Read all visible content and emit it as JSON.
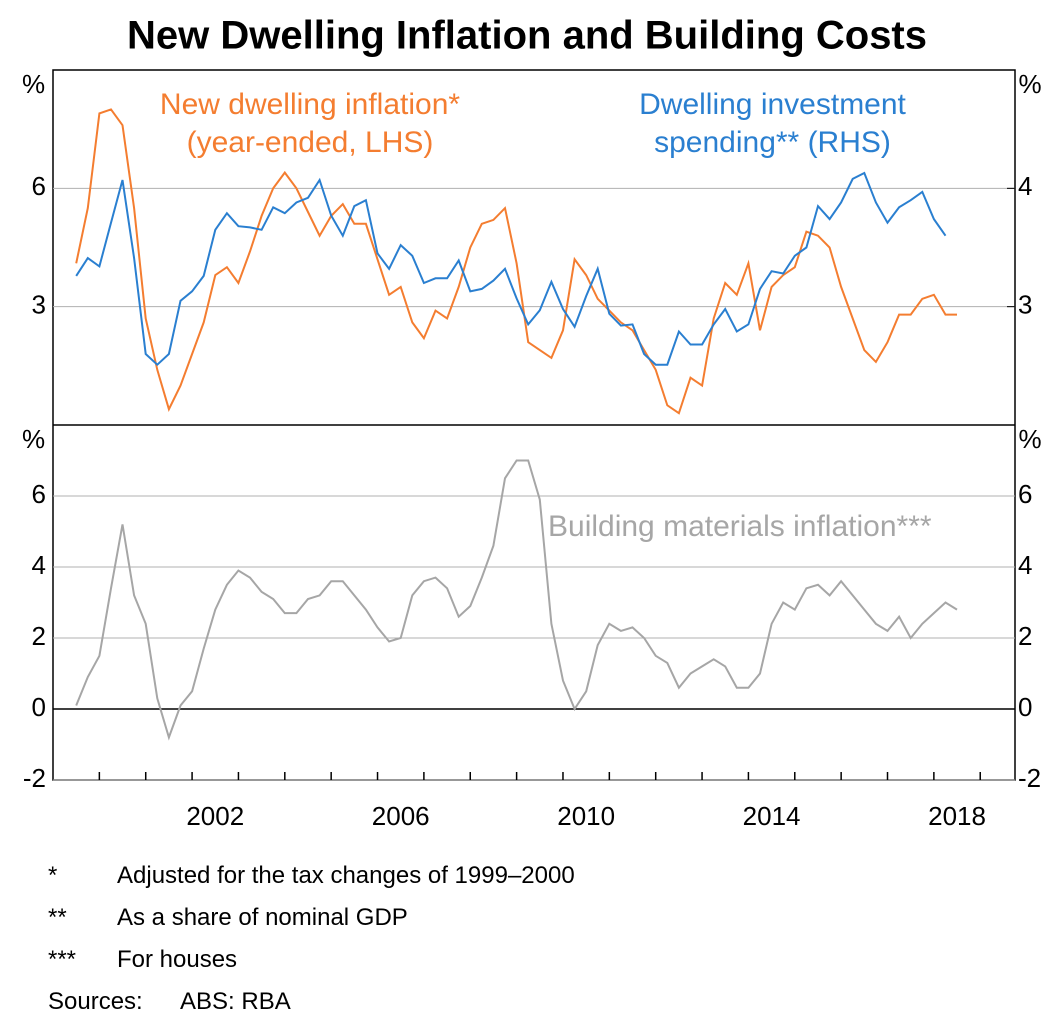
{
  "title": "New Dwelling Inflation and Building Costs",
  "chart_data": [
    {
      "type": "line",
      "ylabel": "%",
      "y2label": "%",
      "xlim": [
        1999,
        2019.75
      ],
      "ylim": [
        0,
        9
      ],
      "yticks": [
        3,
        6
      ],
      "y2lim": [
        2,
        5
      ],
      "y2ticks": [
        3,
        4
      ],
      "grid": true,
      "x": [
        1999.5,
        1999.75,
        2000,
        2000.25,
        2000.5,
        2000.75,
        2001,
        2001.25,
        2001.5,
        2001.75,
        2002,
        2002.25,
        2002.5,
        2002.75,
        2003,
        2003.25,
        2003.5,
        2003.75,
        2004,
        2004.25,
        2004.5,
        2004.75,
        2005,
        2005.25,
        2005.5,
        2005.75,
        2006,
        2006.25,
        2006.5,
        2006.75,
        2007,
        2007.25,
        2007.5,
        2007.75,
        2008,
        2008.25,
        2008.5,
        2008.75,
        2009,
        2009.25,
        2009.5,
        2009.75,
        2010,
        2010.25,
        2010.5,
        2010.75,
        2011,
        2011.25,
        2011.5,
        2011.75,
        2012,
        2012.25,
        2012.5,
        2012.75,
        2013,
        2013.25,
        2013.5,
        2013.75,
        2014,
        2014.25,
        2014.5,
        2014.75,
        2015,
        2015.25,
        2015.5,
        2015.75,
        2016,
        2016.25,
        2016.5,
        2016.75,
        2017,
        2017.25,
        2017.5,
        2017.75,
        2018,
        2018.25,
        2018.5
      ],
      "series": [
        {
          "name": "New dwelling inflation* (year-ended, LHS)",
          "color": "#f47d30",
          "values": [
            4.1,
            5.5,
            7.9,
            8.0,
            7.6,
            5.5,
            2.7,
            1.4,
            0.4,
            1.0,
            1.8,
            2.6,
            3.8,
            4.0,
            3.6,
            4.4,
            5.3,
            6.0,
            6.4,
            6.0,
            5.4,
            4.8,
            5.3,
            5.6,
            5.1,
            5.1,
            4.2,
            3.3,
            3.5,
            2.6,
            2.2,
            2.9,
            2.7,
            3.5,
            4.5,
            5.1,
            5.2,
            5.5,
            4.1,
            2.1,
            1.9,
            1.7,
            2.4,
            4.2,
            3.8,
            3.2,
            2.9,
            2.6,
            2.4,
            1.9,
            1.4,
            0.5,
            0.3,
            1.2,
            1.0,
            2.7,
            3.6,
            3.3,
            4.1,
            2.4,
            3.5,
            3.8,
            4.0,
            4.9,
            4.8,
            4.5,
            3.5,
            2.7,
            1.9,
            1.6,
            2.1,
            2.8,
            2.8,
            3.2,
            3.3,
            2.8,
            2.8
          ]
        },
        {
          "name": "Dwelling investment spending** (RHS)",
          "color": "#2a7fd0",
          "axis": "y2",
          "values": [
            3.26,
            3.41,
            3.34,
            3.71,
            4.07,
            3.41,
            2.6,
            2.51,
            2.6,
            3.05,
            3.13,
            3.26,
            3.65,
            3.79,
            3.68,
            3.67,
            3.65,
            3.84,
            3.79,
            3.88,
            3.92,
            4.07,
            3.77,
            3.6,
            3.85,
            3.9,
            3.45,
            3.32,
            3.52,
            3.43,
            3.2,
            3.24,
            3.24,
            3.39,
            3.13,
            3.15,
            3.22,
            3.32,
            3.07,
            2.85,
            2.97,
            3.21,
            2.98,
            2.83,
            3.09,
            3.32,
            2.94,
            2.84,
            2.85,
            2.6,
            2.51,
            2.51,
            2.79,
            2.68,
            2.68,
            2.85,
            2.98,
            2.79,
            2.85,
            3.15,
            3.3,
            3.28,
            3.43,
            3.5,
            3.85,
            3.74,
            3.88,
            4.08,
            4.13,
            3.88,
            3.71,
            3.84,
            3.9,
            3.97,
            3.74,
            3.6,
            null
          ]
        }
      ]
    },
    {
      "type": "line",
      "ylabel": "%",
      "y2label": "%",
      "xlim": [
        1999,
        2019.75
      ],
      "ylim": [
        -2,
        8
      ],
      "yticks": [
        -2,
        0,
        2,
        4,
        6
      ],
      "grid": true,
      "xticks": [
        2000,
        2001,
        2002,
        2003,
        2004,
        2005,
        2006,
        2007,
        2008,
        2009,
        2010,
        2011,
        2012,
        2013,
        2014,
        2015,
        2016,
        2017,
        2018,
        2019
      ],
      "xlabels": [
        2002,
        2006,
        2010,
        2014,
        2018
      ],
      "x": [
        1999.5,
        1999.75,
        2000,
        2000.25,
        2000.5,
        2000.75,
        2001,
        2001.25,
        2001.5,
        2001.75,
        2002,
        2002.25,
        2002.5,
        2002.75,
        2003,
        2003.25,
        2003.5,
        2003.75,
        2004,
        2004.25,
        2004.5,
        2004.75,
        2005,
        2005.25,
        2005.5,
        2005.75,
        2006,
        2006.25,
        2006.5,
        2006.75,
        2007,
        2007.25,
        2007.5,
        2007.75,
        2008,
        2008.25,
        2008.5,
        2008.75,
        2009,
        2009.25,
        2009.5,
        2009.75,
        2010,
        2010.25,
        2010.5,
        2010.75,
        2011,
        2011.25,
        2011.5,
        2011.75,
        2012,
        2012.25,
        2012.5,
        2012.75,
        2013,
        2013.25,
        2013.5,
        2013.75,
        2014,
        2014.25,
        2014.5,
        2014.75,
        2015,
        2015.25,
        2015.5,
        2015.75,
        2016,
        2016.25,
        2016.5,
        2016.75,
        2017,
        2017.25,
        2017.5,
        2017.75,
        2018,
        2018.25,
        2018.5
      ],
      "series": [
        {
          "name": "Building materials inflation***",
          "color": "#a6a6a6",
          "values": [
            0.1,
            0.9,
            1.5,
            3.4,
            5.2,
            3.2,
            2.4,
            0.3,
            -0.8,
            0.1,
            0.5,
            1.7,
            2.8,
            3.5,
            3.9,
            3.7,
            3.3,
            3.1,
            2.7,
            2.7,
            3.1,
            3.2,
            3.6,
            3.6,
            3.2,
            2.8,
            2.3,
            1.9,
            2.0,
            3.2,
            3.6,
            3.7,
            3.4,
            2.6,
            2.9,
            3.7,
            4.6,
            6.5,
            7.0,
            7.0,
            5.9,
            2.4,
            0.8,
            0.0,
            0.5,
            1.8,
            2.4,
            2.2,
            2.3,
            2.0,
            1.5,
            1.3,
            0.6,
            1.0,
            1.2,
            1.4,
            1.2,
            0.6,
            0.6,
            1.0,
            2.4,
            3.0,
            2.8,
            3.4,
            3.5,
            3.2,
            3.6,
            3.2,
            2.8,
            2.4,
            2.2,
            2.6,
            2.0,
            2.4,
            2.7,
            3.0,
            2.8
          ]
        }
      ]
    }
  ],
  "notes": [
    {
      "marker": "*",
      "text": "Adjusted for the tax changes of 1999–2000"
    },
    {
      "marker": "**",
      "text": "As a share of nominal GDP"
    },
    {
      "marker": "***",
      "text": "For houses"
    }
  ],
  "sources": {
    "label": "Sources:",
    "text": "ABS: RBA"
  }
}
